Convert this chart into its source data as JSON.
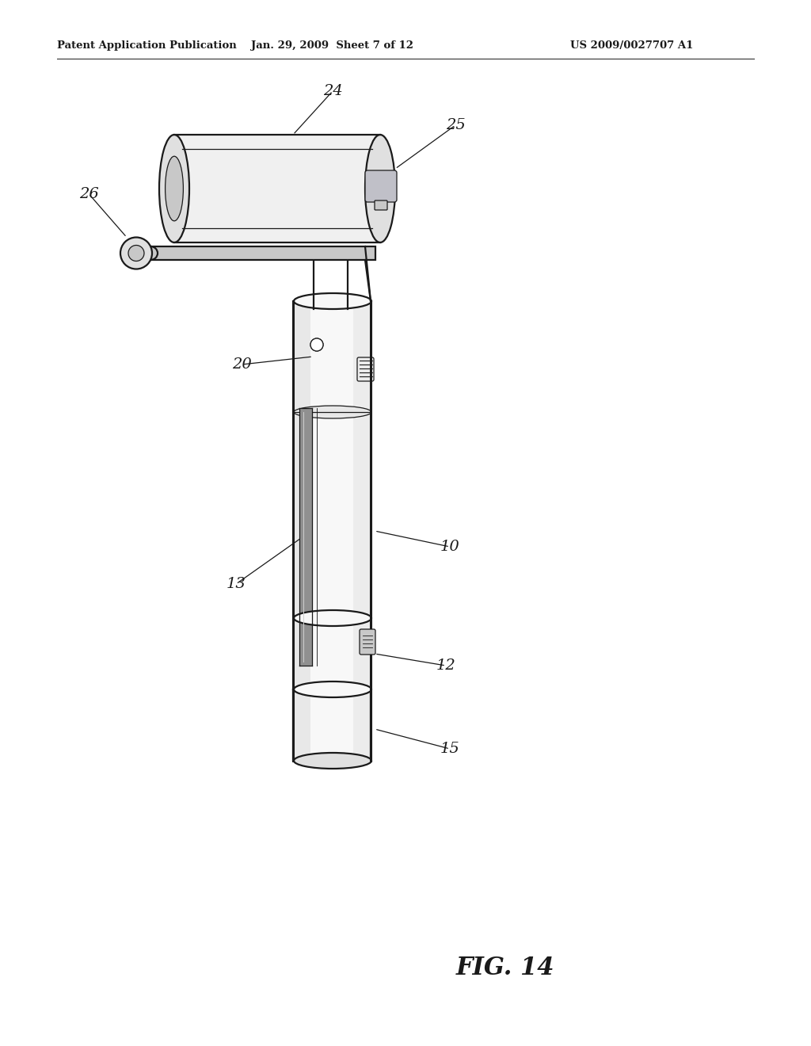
{
  "background_color": "#ffffff",
  "header_left": "Patent Application Publication",
  "header_mid": "Jan. 29, 2009  Sheet 7 of 12",
  "header_right": "US 2009/0027707 A1",
  "figure_label": "FIG. 14",
  "text_color": "#1a1a1a",
  "line_color": "#1a1a1a",
  "body_fill": "#f8f8f8",
  "shadow_fill": "#e0e0e0",
  "dark_fill": "#c8c8c8",
  "slot_fill": "#b8b8b8",
  "cam_fill": "#f0f0f0",
  "cam_shadow": "#d8d8d8"
}
